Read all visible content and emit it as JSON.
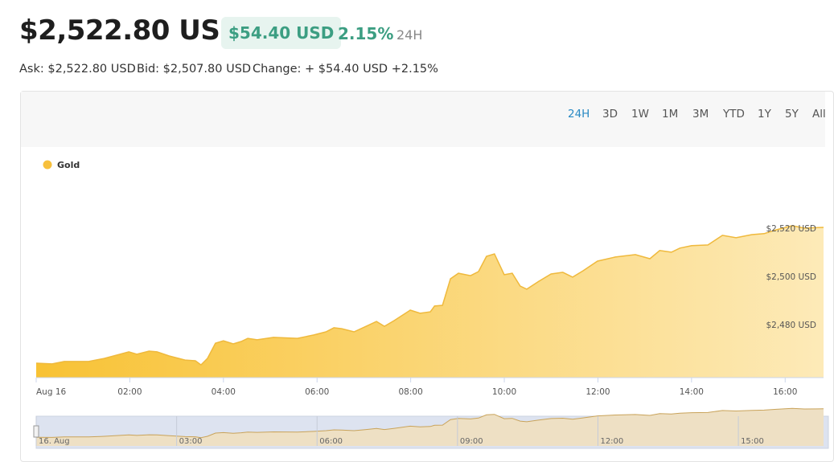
{
  "header": {
    "price": "$2,522.80 USD",
    "change": "$54.40 USD",
    "percent": "2.15%",
    "period": "24H",
    "ask": "Ask: $2,522.80 USD",
    "bid": "Bid: $2,507.80 USD",
    "change_detail": "Change: + $54.40 USD +2.15%",
    "ranges": [
      "24H",
      "3D",
      "1W",
      "1M",
      "3M",
      "YTD",
      "1Y",
      "5Y",
      "All"
    ],
    "active_range": 0
  },
  "chart_data": {
    "type": "area",
    "legend": "top-left",
    "series": [
      {
        "name": "Gold",
        "color": "#f7c03c",
        "x": [
          0,
          0.34,
          0.6,
          1.12,
          1.46,
          1.98,
          2.15,
          2.41,
          2.58,
          2.84,
          3.18,
          3.4,
          3.52,
          3.66,
          3.83,
          4.0,
          4.21,
          4.38,
          4.52,
          4.72,
          5.07,
          5.58,
          5.93,
          6.19,
          6.36,
          6.53,
          6.79,
          7.05,
          7.27,
          7.44,
          7.65,
          7.99,
          8.2,
          8.42,
          8.51,
          8.68,
          8.85,
          9.02,
          9.28,
          9.45,
          9.62,
          9.79,
          10.0,
          10.17,
          10.34,
          10.48,
          10.74,
          11.0,
          11.25,
          11.46,
          11.68,
          11.99,
          12.37,
          12.8,
          13.11,
          13.32,
          13.57,
          13.75,
          14.0,
          14.35,
          14.66,
          14.95,
          15.29,
          15.55,
          15.81,
          16.15,
          16.41,
          16.82
        ],
        "values": [
          2464,
          2463.7,
          2464.7,
          2464.7,
          2466,
          2468.7,
          2467.7,
          2469,
          2468.7,
          2467,
          2465.3,
          2465,
          2463.3,
          2466,
          2472.3,
          2473.3,
          2472,
          2473,
          2474.3,
          2473.7,
          2474.7,
          2474.3,
          2475.7,
          2477,
          2478.7,
          2478.3,
          2477,
          2479.3,
          2481.3,
          2479.3,
          2481.7,
          2486,
          2484.7,
          2485.3,
          2487.7,
          2488,
          2499,
          2501.3,
          2500.3,
          2502,
          2508.3,
          2509.3,
          2500.7,
          2501.3,
          2496,
          2494.7,
          2498,
          2501,
          2501.7,
          2499.7,
          2502.3,
          2506.3,
          2508,
          2509,
          2507.3,
          2510.7,
          2510,
          2511.7,
          2512.7,
          2513,
          2517,
          2516,
          2517.3,
          2517.7,
          2519.3,
          2521,
          2520,
          2520.3
        ]
      }
    ],
    "xlim": [
      0,
      16.82
    ],
    "xticks": [
      {
        "value": 0,
        "label": "Aug 16"
      },
      {
        "value": 2,
        "label": "02:00"
      },
      {
        "value": 4,
        "label": "04:00"
      },
      {
        "value": 6,
        "label": "06:00"
      },
      {
        "value": 8,
        "label": "08:00"
      },
      {
        "value": 10,
        "label": "10:00"
      },
      {
        "value": 12,
        "label": "12:00"
      },
      {
        "value": 14,
        "label": "14:00"
      },
      {
        "value": 16,
        "label": "16:00"
      }
    ],
    "ylim": [
      2458,
      2553.3
    ],
    "yticks": [
      {
        "value": 2480,
        "label": "$2,480 USD"
      },
      {
        "value": 2500,
        "label": "$2,500 USD"
      },
      {
        "value": 2520,
        "label": "$2,520 USD"
      }
    ],
    "navigator_ticks": [
      {
        "value": 0,
        "label": "16. Aug"
      },
      {
        "value": 3,
        "label": "03:00"
      },
      {
        "value": 6,
        "label": "06:00"
      },
      {
        "value": 9,
        "label": "09:00"
      },
      {
        "value": 12,
        "label": "12:00"
      },
      {
        "value": 15,
        "label": "15:00"
      }
    ]
  }
}
